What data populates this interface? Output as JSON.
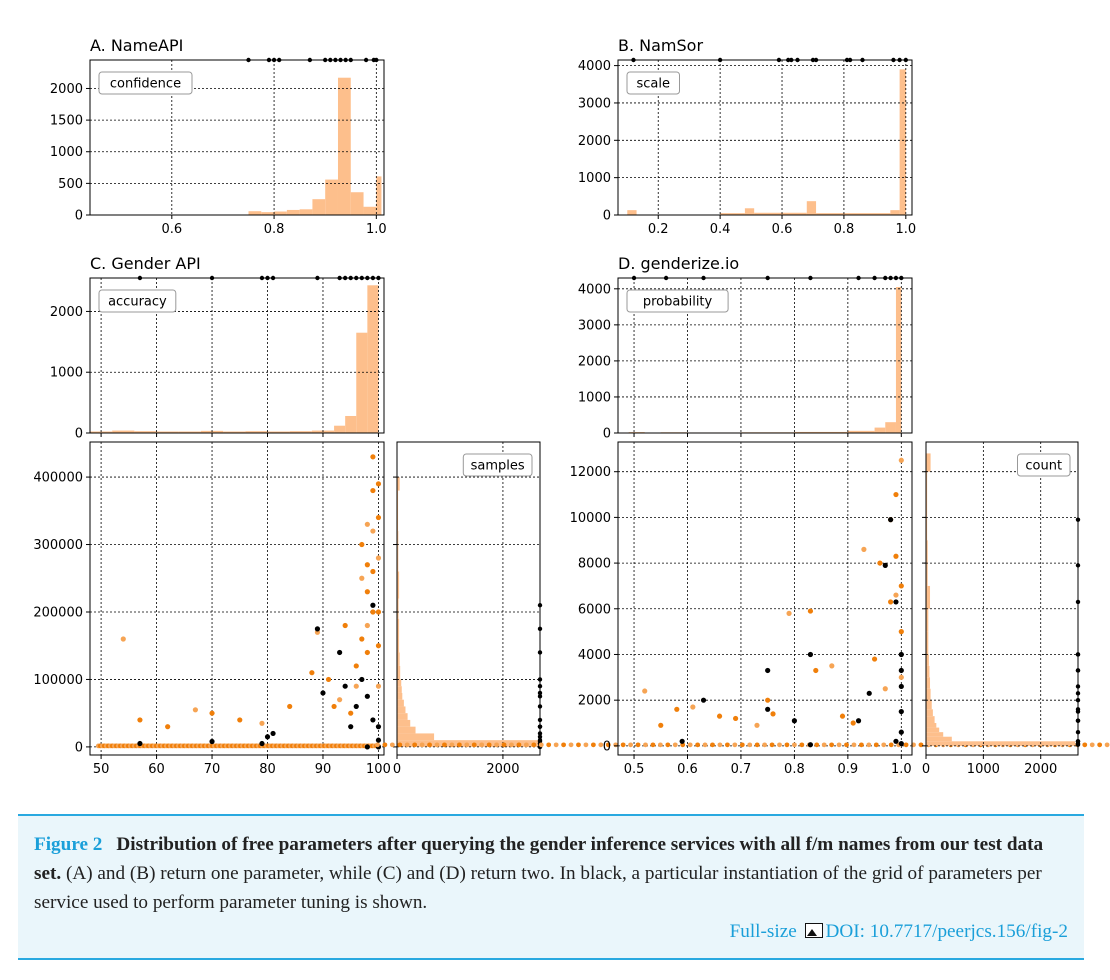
{
  "caption": {
    "label": "Figure 2",
    "title": "Distribution of free parameters after querying the gender inference services with all f/m names from our test data set.",
    "body": "(A) and (B) return one parameter, while (C) and (D) return two. In black, a particular instantiation of the grid of parameters per service used to perform parameter tuning is shown.",
    "full_size": "Full-size",
    "doi": "DOI: 10.7717/peerjcs.156/fig-2"
  },
  "colors": {
    "hist": "#fdbf8c",
    "scatter_dark": "#f07f0a",
    "scatter_light": "#f6a454",
    "grid_points": "#000000",
    "accent": "#1a9fd9"
  },
  "chart_data": [
    {
      "id": "A",
      "type": "bar",
      "title": "A. NameAPI",
      "legend": "confidence",
      "legend_position": "top-left",
      "xlim": [
        0.44,
        1.015
      ],
      "ylim": [
        0,
        2450
      ],
      "grid": true,
      "xticks": [
        0.6,
        0.8,
        1.0
      ],
      "xtick_labels": [
        "0.6",
        "0.8",
        "1.0"
      ],
      "yticks": [
        0,
        500,
        1000,
        1500,
        2000
      ],
      "ytick_labels": [
        "0",
        "500",
        "1000",
        "1500",
        "2000"
      ],
      "bins": [
        [
          0.7,
          0.725,
          2
        ],
        [
          0.725,
          0.75,
          5
        ],
        [
          0.75,
          0.775,
          60
        ],
        [
          0.775,
          0.8,
          45
        ],
        [
          0.8,
          0.825,
          55
        ],
        [
          0.825,
          0.85,
          80
        ],
        [
          0.85,
          0.875,
          90
        ],
        [
          0.875,
          0.9,
          250
        ],
        [
          0.9,
          0.925,
          560
        ],
        [
          0.925,
          0.95,
          2170
        ],
        [
          0.95,
          0.975,
          360
        ],
        [
          0.975,
          1.0,
          130
        ],
        [
          1.0,
          1.01,
          610
        ]
      ],
      "grid_points": [
        0.75,
        0.79,
        0.8,
        0.81,
        0.87,
        0.9,
        0.91,
        0.92,
        0.93,
        0.94,
        0.95,
        0.98,
        0.995,
        1.0
      ]
    },
    {
      "id": "B",
      "type": "bar",
      "title": "B. NamSor",
      "legend": "scale",
      "legend_position": "top-left",
      "xlim": [
        0.07,
        1.02
      ],
      "ylim": [
        0,
        4150
      ],
      "grid": true,
      "xticks": [
        0.2,
        0.4,
        0.6,
        0.8,
        1.0
      ],
      "xtick_labels": [
        "0.2",
        "0.4",
        "0.6",
        "0.8",
        "1.0"
      ],
      "yticks": [
        0,
        1000,
        2000,
        3000,
        4000
      ],
      "ytick_labels": [
        "0",
        "1000",
        "2000",
        "3000",
        "4000"
      ],
      "bins": [
        [
          0.1,
          0.13,
          130
        ],
        [
          0.13,
          0.4,
          10
        ],
        [
          0.4,
          0.48,
          50
        ],
        [
          0.48,
          0.51,
          180
        ],
        [
          0.51,
          0.68,
          60
        ],
        [
          0.68,
          0.71,
          370
        ],
        [
          0.71,
          0.95,
          50
        ],
        [
          0.95,
          0.98,
          130
        ],
        [
          0.98,
          1.0,
          3900
        ]
      ],
      "grid_points": [
        0.12,
        0.4,
        0.59,
        0.62,
        0.63,
        0.65,
        0.7,
        0.71,
        0.81,
        0.82,
        0.86,
        0.96,
        0.98,
        1.0
      ]
    },
    {
      "id": "C",
      "type": "scatter",
      "title": "C. Gender API",
      "top_hist": {
        "legend": "accuracy",
        "legend_position": "top-left",
        "ylim": [
          0,
          2550
        ],
        "yticks": [
          0,
          1000,
          2000
        ],
        "ytick_labels": [
          "0",
          "1000",
          "2000"
        ],
        "bins": [
          [
            48,
            52,
            25
          ],
          [
            52,
            56,
            40
          ],
          [
            56,
            60,
            30
          ],
          [
            60,
            64,
            25
          ],
          [
            64,
            68,
            25
          ],
          [
            68,
            72,
            35
          ],
          [
            72,
            76,
            25
          ],
          [
            76,
            80,
            30
          ],
          [
            80,
            84,
            25
          ],
          [
            84,
            88,
            30
          ],
          [
            88,
            92,
            40
          ],
          [
            92,
            94,
            120
          ],
          [
            94,
            96,
            280
          ],
          [
            96,
            98,
            1650
          ],
          [
            98,
            100,
            2430
          ]
        ],
        "grid_points": [
          57,
          70,
          79,
          80,
          81,
          89,
          93,
          94,
          95,
          96,
          97,
          98,
          99,
          100
        ]
      },
      "scatter": {
        "xlim": [
          48,
          101
        ],
        "ylim": [
          -12000,
          452000
        ],
        "xticks": [
          50,
          60,
          70,
          80,
          90,
          100
        ],
        "xtick_labels": [
          "50",
          "60",
          "70",
          "80",
          "90",
          "100"
        ],
        "yticks": [
          0,
          100000,
          200000,
          300000,
          400000
        ],
        "ytick_labels": [
          "0",
          "100000",
          "200000",
          "300000",
          "400000"
        ],
        "points": [
          [
            54,
            160000
          ],
          [
            57,
            40000
          ],
          [
            62,
            30000
          ],
          [
            67,
            55000
          ],
          [
            70,
            50000
          ],
          [
            75,
            40000
          ],
          [
            79,
            35000
          ],
          [
            84,
            60000
          ],
          [
            88,
            110000
          ],
          [
            89,
            170000
          ],
          [
            91,
            100000
          ],
          [
            92,
            60000
          ],
          [
            93,
            70000
          ],
          [
            94,
            180000
          ],
          [
            95,
            50000
          ],
          [
            96,
            90000
          ],
          [
            96,
            120000
          ],
          [
            97,
            160000
          ],
          [
            97,
            250000
          ],
          [
            97,
            300000
          ],
          [
            98,
            140000
          ],
          [
            98,
            180000
          ],
          [
            98,
            230000
          ],
          [
            98,
            270000
          ],
          [
            98,
            330000
          ],
          [
            99,
            200000
          ],
          [
            99,
            260000
          ],
          [
            99,
            320000
          ],
          [
            99,
            380000
          ],
          [
            99,
            430000
          ],
          [
            100,
            90000
          ],
          [
            100,
            150000
          ],
          [
            100,
            200000
          ],
          [
            100,
            280000
          ],
          [
            100,
            340000
          ],
          [
            100,
            390000
          ]
        ],
        "grid_points": [
          [
            57,
            5000
          ],
          [
            70,
            8000
          ],
          [
            79,
            5000
          ],
          [
            80,
            15000
          ],
          [
            81,
            20000
          ],
          [
            89,
            175000
          ],
          [
            90,
            80000
          ],
          [
            93,
            140000
          ],
          [
            94,
            90000
          ],
          [
            95,
            30000
          ],
          [
            96,
            60000
          ],
          [
            97,
            100000
          ],
          [
            98,
            0
          ],
          [
            98,
            75000
          ],
          [
            99,
            210000
          ],
          [
            99,
            40000
          ],
          [
            100,
            0
          ],
          [
            100,
            30000
          ],
          [
            100,
            10000
          ]
        ]
      },
      "side_hist": {
        "legend": "samples",
        "legend_position": "top-right",
        "xlim": [
          0,
          2700
        ],
        "xticks": [
          0,
          2000
        ],
        "xtick_labels": [
          "0",
          "2000"
        ],
        "bins": [
          [
            0,
            10000,
            2700
          ],
          [
            10000,
            20000,
            700
          ],
          [
            20000,
            30000,
            350
          ],
          [
            30000,
            40000,
            250
          ],
          [
            40000,
            50000,
            200
          ],
          [
            50000,
            60000,
            160
          ],
          [
            60000,
            70000,
            130
          ],
          [
            70000,
            80000,
            100
          ],
          [
            80000,
            90000,
            90
          ],
          [
            90000,
            100000,
            80
          ],
          [
            100000,
            120000,
            60
          ],
          [
            120000,
            140000,
            50
          ],
          [
            140000,
            160000,
            40
          ],
          [
            160000,
            190000,
            40
          ],
          [
            190000,
            220000,
            30
          ],
          [
            220000,
            260000,
            40
          ],
          [
            260000,
            320000,
            25
          ],
          [
            320000,
            380000,
            20
          ],
          [
            380000,
            400000,
            50
          ]
        ]
      }
    },
    {
      "id": "D",
      "type": "scatter",
      "title": "D. genderize.io",
      "top_hist": {
        "legend": "probability",
        "legend_position": "top-left",
        "ylim": [
          0,
          4300
        ],
        "yticks": [
          0,
          1000,
          2000,
          3000,
          4000
        ],
        "ytick_labels": [
          "0",
          "1000",
          "2000",
          "3000",
          "4000"
        ],
        "bins": [
          [
            0.49,
            0.52,
            25
          ],
          [
            0.52,
            0.55,
            10
          ],
          [
            0.55,
            0.6,
            20
          ],
          [
            0.6,
            0.7,
            15
          ],
          [
            0.7,
            0.8,
            20
          ],
          [
            0.8,
            0.9,
            30
          ],
          [
            0.9,
            0.95,
            60
          ],
          [
            0.95,
            0.97,
            150
          ],
          [
            0.97,
            0.99,
            300
          ],
          [
            0.99,
            1.0,
            4050
          ]
        ],
        "grid_points": [
          0.5,
          0.56,
          0.63,
          0.75,
          0.83,
          0.92,
          0.95,
          0.97,
          0.98,
          0.99,
          1.0
        ]
      },
      "scatter": {
        "xlim": [
          0.47,
          1.02
        ],
        "ylim": [
          -400,
          13300
        ],
        "xticks": [
          0.5,
          0.6,
          0.7,
          0.8,
          0.9,
          1.0
        ],
        "xtick_labels": [
          "0.5",
          "0.6",
          "0.7",
          "0.8",
          "0.9",
          "1.0"
        ],
        "yticks": [
          0,
          2000,
          4000,
          6000,
          8000,
          10000,
          12000
        ],
        "ytick_labels": [
          "0",
          "2000",
          "4000",
          "6000",
          "8000",
          "10000",
          "12000"
        ],
        "points": [
          [
            0.52,
            2400
          ],
          [
            0.55,
            900
          ],
          [
            0.58,
            1600
          ],
          [
            0.61,
            1700
          ],
          [
            0.66,
            1300
          ],
          [
            0.69,
            1200
          ],
          [
            0.73,
            900
          ],
          [
            0.75,
            2000
          ],
          [
            0.76,
            1400
          ],
          [
            0.79,
            5800
          ],
          [
            0.83,
            5900
          ],
          [
            0.84,
            3300
          ],
          [
            0.87,
            3500
          ],
          [
            0.89,
            1300
          ],
          [
            0.91,
            1000
          ],
          [
            0.93,
            8600
          ],
          [
            0.95,
            3800
          ],
          [
            0.96,
            8000
          ],
          [
            0.97,
            2500
          ],
          [
            0.98,
            9900
          ],
          [
            0.98,
            6300
          ],
          [
            0.99,
            6600
          ],
          [
            0.99,
            8300
          ],
          [
            0.99,
            11000
          ],
          [
            1.0,
            12500
          ],
          [
            1.0,
            7000
          ],
          [
            1.0,
            5000
          ],
          [
            1.0,
            3000
          ]
        ],
        "grid_points": [
          [
            0.59,
            200
          ],
          [
            0.63,
            2000
          ],
          [
            0.75,
            3300
          ],
          [
            0.75,
            1600
          ],
          [
            0.8,
            1100
          ],
          [
            0.83,
            4000
          ],
          [
            0.83,
            50
          ],
          [
            0.92,
            1100
          ],
          [
            0.94,
            2300
          ],
          [
            0.97,
            7900
          ],
          [
            0.98,
            9900
          ],
          [
            0.99,
            6300
          ],
          [
            0.99,
            200
          ],
          [
            1.0,
            4000
          ],
          [
            1.0,
            3300
          ],
          [
            1.0,
            2600
          ],
          [
            1.0,
            1500
          ],
          [
            1.0,
            600
          ],
          [
            1.0,
            100
          ]
        ]
      },
      "side_hist": {
        "legend": "count",
        "legend_position": "top-right",
        "xlim": [
          0,
          2650
        ],
        "xticks": [
          0,
          1000,
          2000
        ],
        "xtick_labels": [
          "0",
          "1000",
          "2000"
        ],
        "bins": [
          [
            0,
            200,
            2600
          ],
          [
            200,
            400,
            450
          ],
          [
            400,
            600,
            300
          ],
          [
            600,
            800,
            230
          ],
          [
            800,
            1000,
            180
          ],
          [
            1000,
            1300,
            150
          ],
          [
            1300,
            1600,
            120
          ],
          [
            1600,
            2000,
            100
          ],
          [
            2000,
            2500,
            80
          ],
          [
            2500,
            3000,
            70
          ],
          [
            3000,
            3500,
            60
          ],
          [
            3500,
            4000,
            50
          ],
          [
            4000,
            5000,
            40
          ],
          [
            5000,
            6000,
            40
          ],
          [
            6000,
            7000,
            70
          ],
          [
            7000,
            9000,
            30
          ],
          [
            9000,
            10000,
            20
          ],
          [
            10000,
            11000,
            20
          ],
          [
            11000,
            12000,
            20
          ],
          [
            12000,
            12800,
            80
          ]
        ]
      }
    }
  ]
}
